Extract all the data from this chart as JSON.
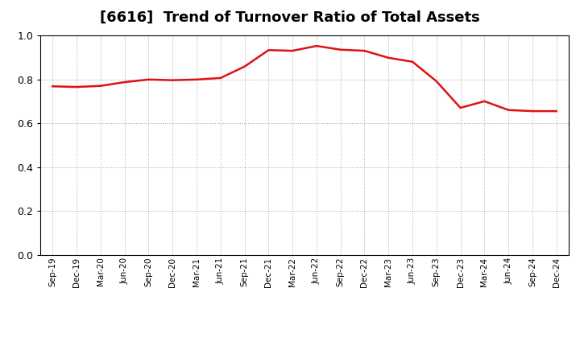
{
  "title": "[6616]  Trend of Turnover Ratio of Total Assets",
  "title_fontsize": 13,
  "line_color": "#e01010",
  "line_width": 1.8,
  "background_color": "#ffffff",
  "plot_bg_color": "#ffffff",
  "grid_color": "#aaaaaa",
  "ylim": [
    0.0,
    1.0
  ],
  "yticks": [
    0.0,
    0.2,
    0.4,
    0.6,
    0.8,
    1.0
  ],
  "x_labels": [
    "Sep-19",
    "Dec-19",
    "Mar-20",
    "Jun-20",
    "Sep-20",
    "Dec-20",
    "Mar-21",
    "Jun-21",
    "Sep-21",
    "Dec-21",
    "Mar-22",
    "Jun-22",
    "Sep-22",
    "Dec-22",
    "Mar-23",
    "Jun-23",
    "Sep-23",
    "Dec-23",
    "Mar-24",
    "Jun-24",
    "Sep-24",
    "Dec-24"
  ],
  "values": [
    0.768,
    0.765,
    0.77,
    0.787,
    0.799,
    0.796,
    0.799,
    0.806,
    0.858,
    0.933,
    0.93,
    0.952,
    0.935,
    0.93,
    0.898,
    0.88,
    0.791,
    0.67,
    0.7,
    0.66,
    0.655,
    0.655
  ]
}
